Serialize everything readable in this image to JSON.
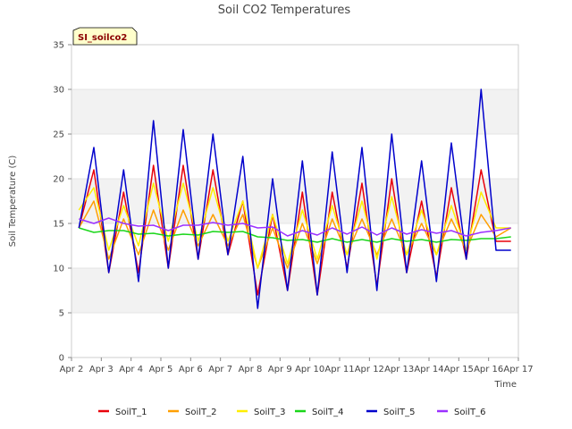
{
  "chart_data": {
    "type": "line",
    "title": "Soil CO2 Temperatures",
    "xlabel": "Time",
    "ylabel": "Soil Temperature (C)",
    "site_label": "SI_soilco2",
    "ylim": [
      0,
      35
    ],
    "yticks": [
      0,
      5,
      10,
      15,
      20,
      25,
      30,
      35
    ],
    "xlim": [
      "2023-04-02",
      "2023-04-17"
    ],
    "xticks": [
      "2023-04-02",
      "2023-04-03",
      "2023-04-04",
      "2023-04-05",
      "2023-04-06",
      "2023-04-07",
      "2023-04-08",
      "2023-04-09",
      "2023-04-10",
      "2023-04-11",
      "2023-04-12",
      "2023-04-13",
      "2023-04-14",
      "2023-04-15",
      "2023-04-16",
      "2023-04-17"
    ],
    "xtick_labels": [
      "Apr 2",
      "Apr 3",
      "Apr 4",
      "Apr 5",
      "Apr 6",
      "Apr 7",
      "Apr 8",
      "Apr 9",
      "Apr 10",
      "Apr 11",
      "Apr 12",
      "Apr 13",
      "Apr 14",
      "Apr 15",
      "Apr 16",
      "Apr 17"
    ],
    "grid": true,
    "legend_position": "bottom",
    "x": [
      "2023-04-02 06:00",
      "2023-04-02 18:00",
      "2023-04-03 06:00",
      "2023-04-03 18:00",
      "2023-04-04 06:00",
      "2023-04-04 18:00",
      "2023-04-05 06:00",
      "2023-04-05 18:00",
      "2023-04-06 06:00",
      "2023-04-06 18:00",
      "2023-04-07 06:00",
      "2023-04-07 18:00",
      "2023-04-08 06:00",
      "2023-04-08 18:00",
      "2023-04-09 06:00",
      "2023-04-09 18:00",
      "2023-04-10 06:00",
      "2023-04-10 18:00",
      "2023-04-11 06:00",
      "2023-04-11 18:00",
      "2023-04-12 06:00",
      "2023-04-12 18:00",
      "2023-04-13 06:00",
      "2023-04-13 18:00",
      "2023-04-14 06:00",
      "2023-04-14 18:00",
      "2023-04-15 06:00",
      "2023-04-15 18:00",
      "2023-04-16 06:00",
      "2023-04-16 18:00"
    ],
    "series": [
      {
        "name": "SoilT_1",
        "color": "#e8000b",
        "values": [
          14.5,
          21.0,
          9.5,
          18.5,
          9.5,
          21.5,
          10.0,
          21.5,
          11.0,
          21.0,
          11.5,
          17.5,
          7.0,
          16.0,
          7.5,
          18.5,
          7.0,
          18.5,
          10.0,
          19.5,
          8.0,
          20.0,
          9.5,
          17.5,
          9.0,
          19.0,
          11.0,
          21.0,
          13.0,
          13.0
        ]
      },
      {
        "name": "SoilT_2",
        "color": "#ff9f00",
        "values": [
          14.5,
          17.5,
          11.0,
          15.5,
          11.5,
          16.5,
          12.0,
          16.5,
          12.5,
          16.0,
          12.5,
          16.0,
          10.0,
          14.5,
          10.0,
          15.0,
          10.5,
          15.5,
          11.5,
          15.5,
          11.5,
          15.5,
          11.5,
          15.0,
          11.5,
          15.5,
          12.0,
          16.0,
          13.5,
          14.5
        ]
      },
      {
        "name": "SoilT_3",
        "color": "#ffee00",
        "values": [
          16.5,
          19.0,
          12.0,
          17.0,
          12.5,
          19.5,
          13.0,
          19.5,
          13.0,
          19.0,
          13.0,
          17.5,
          10.0,
          16.0,
          10.5,
          16.5,
          11.0,
          17.0,
          11.5,
          17.5,
          11.0,
          18.0,
          11.5,
          16.5,
          11.5,
          17.0,
          12.0,
          18.5,
          14.5,
          14.5
        ]
      },
      {
        "name": "SoilT_4",
        "color": "#1ad61a",
        "values": [
          14.5,
          14.0,
          14.2,
          14.2,
          13.8,
          13.9,
          13.6,
          13.8,
          13.7,
          14.1,
          14.0,
          14.1,
          13.5,
          13.4,
          13.1,
          13.2,
          12.9,
          13.3,
          12.9,
          13.2,
          12.9,
          13.3,
          13.0,
          13.2,
          12.9,
          13.2,
          13.1,
          13.3,
          13.3,
          13.5
        ]
      },
      {
        "name": "SoilT_5",
        "color": "#0000cc",
        "values": [
          14.5,
          23.5,
          9.5,
          21.0,
          8.5,
          26.5,
          10.0,
          25.5,
          11.0,
          25.0,
          11.5,
          22.5,
          5.5,
          20.0,
          7.5,
          22.0,
          7.0,
          23.0,
          9.5,
          23.5,
          7.5,
          25.0,
          9.5,
          22.0,
          8.5,
          24.0,
          11.0,
          30.0,
          12.0,
          12.0
        ]
      },
      {
        "name": "SoilT_6",
        "color": "#9b30ff",
        "values": [
          15.5,
          15.0,
          15.6,
          15.0,
          14.7,
          14.8,
          14.2,
          14.8,
          14.8,
          15.1,
          14.8,
          15.0,
          14.5,
          14.6,
          13.6,
          14.2,
          13.7,
          14.5,
          13.8,
          14.6,
          13.7,
          14.5,
          13.8,
          14.3,
          13.9,
          14.2,
          13.6,
          14.0,
          14.2,
          14.5
        ]
      }
    ]
  }
}
